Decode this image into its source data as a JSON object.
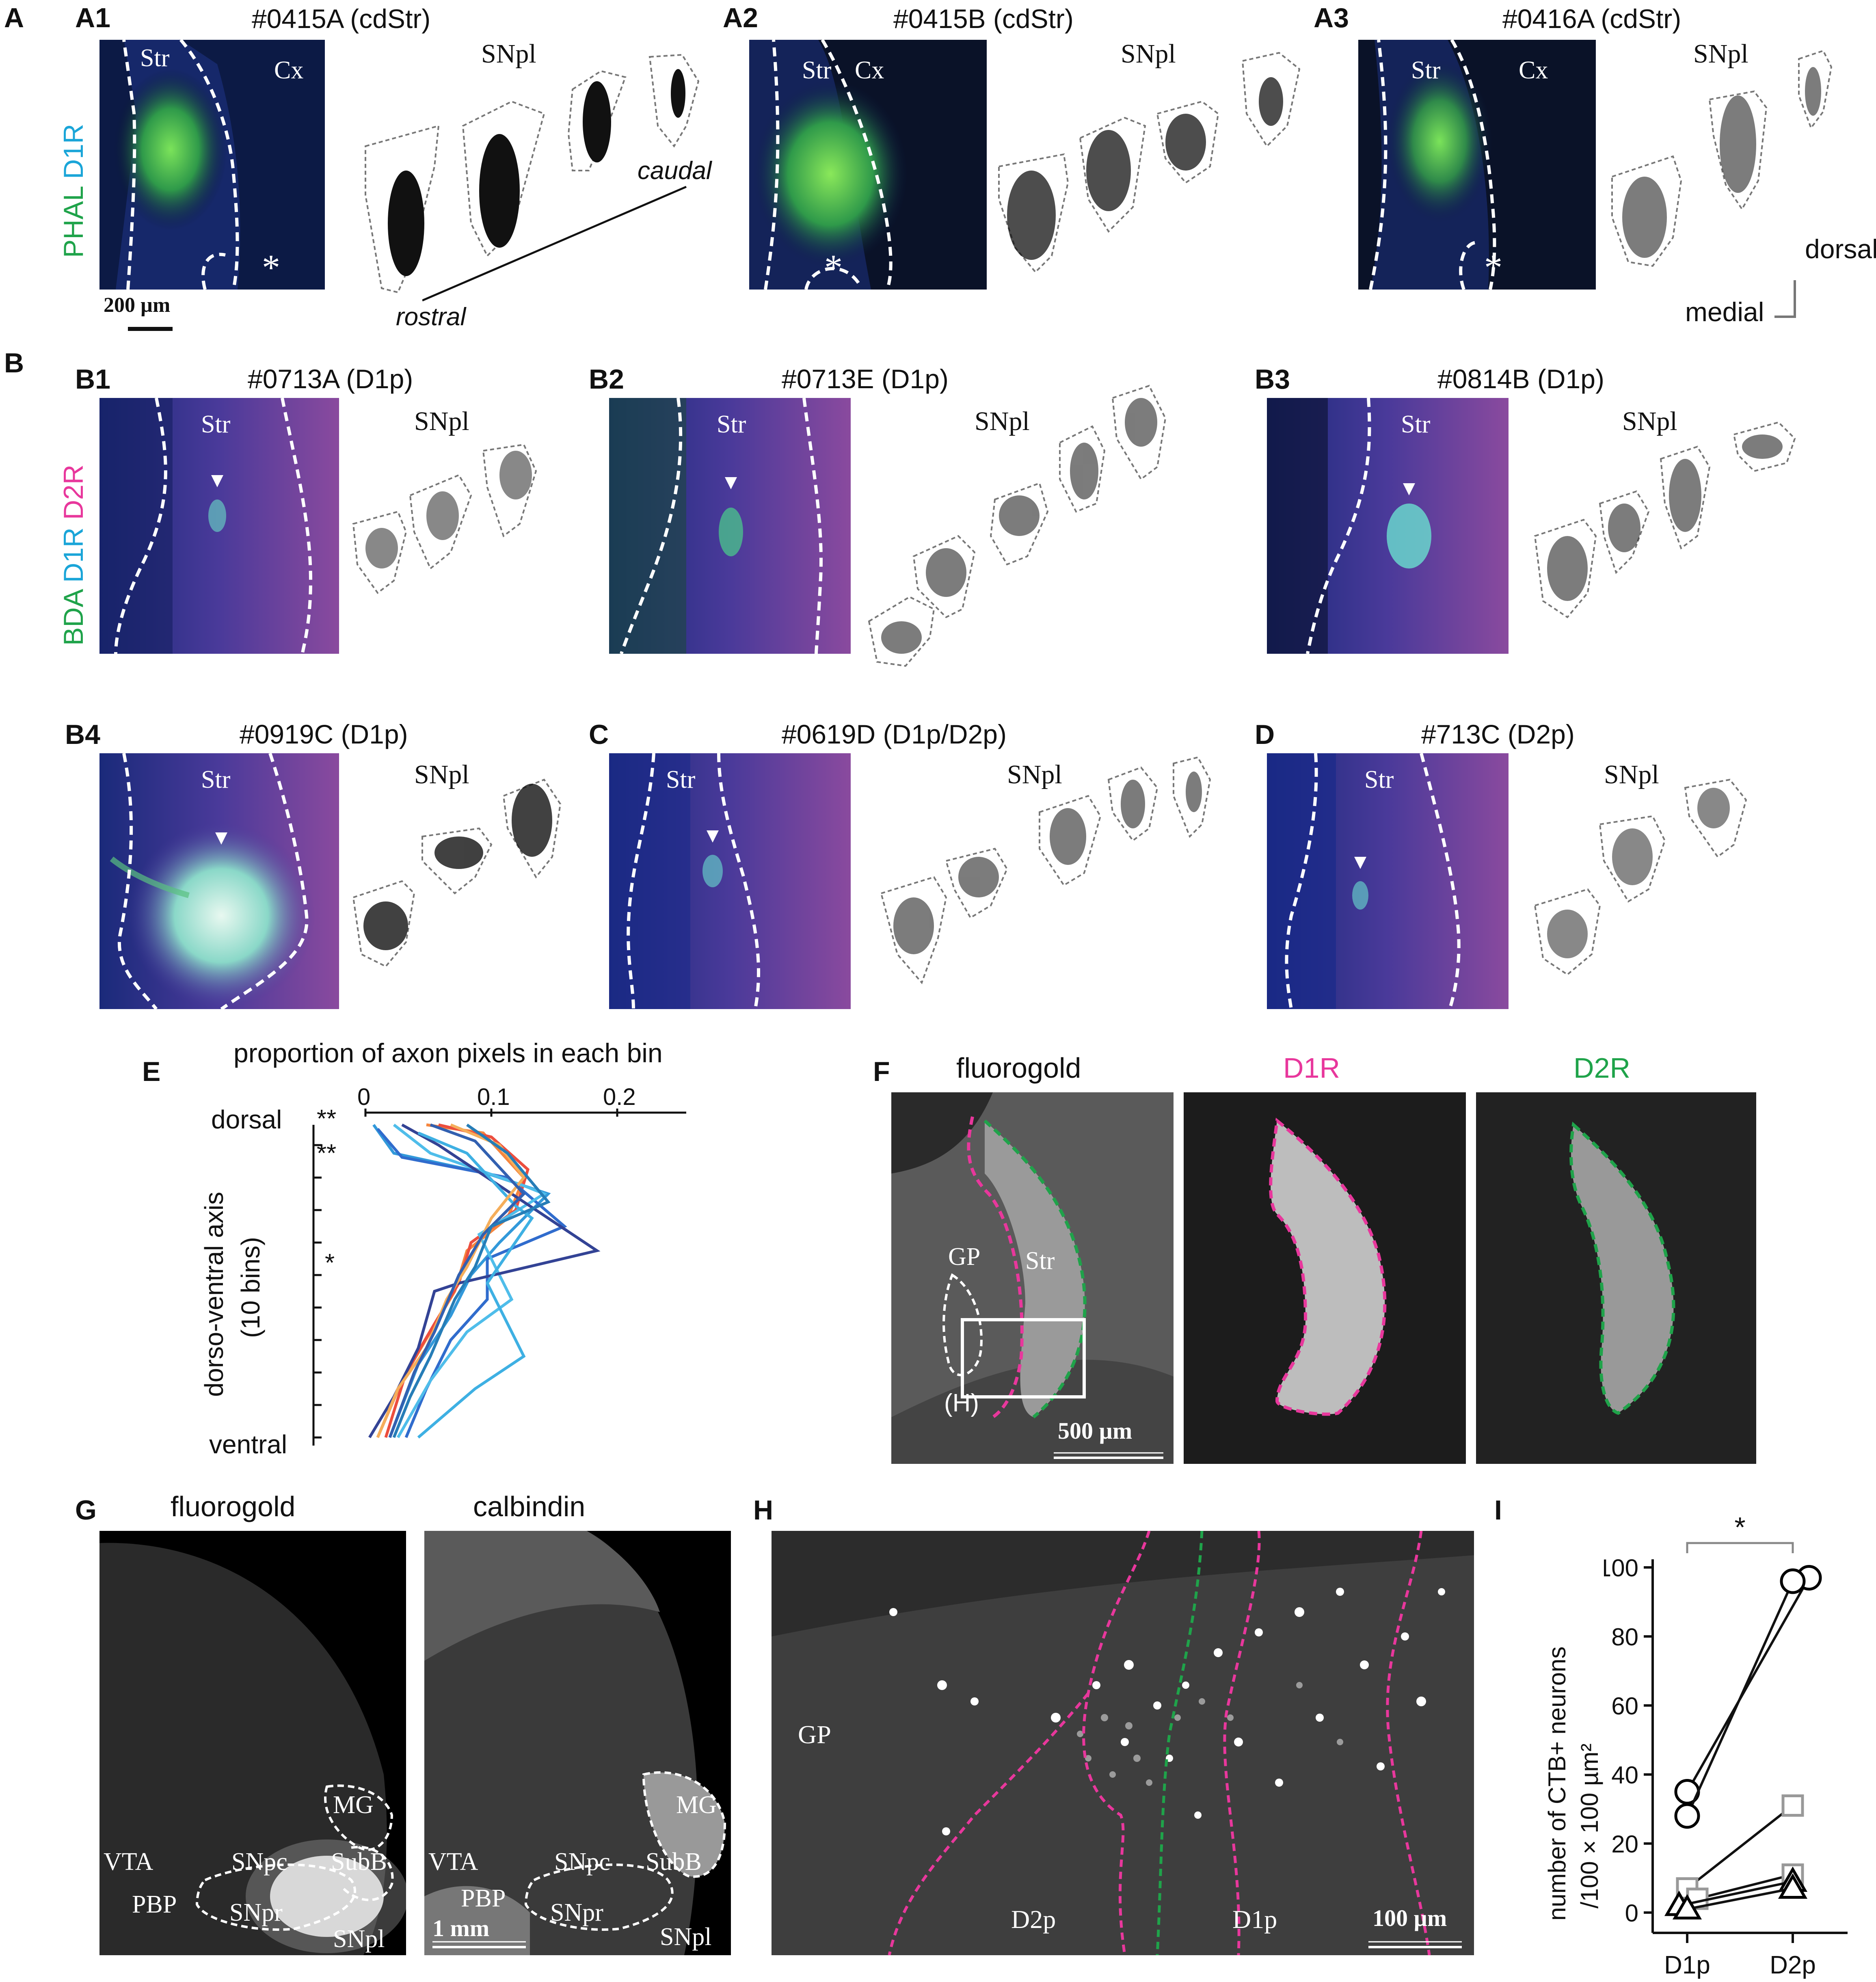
{
  "panel_letters": {
    "A": "A",
    "B": "B",
    "E": "E",
    "F": "F",
    "G": "G",
    "H": "H",
    "I": "I"
  },
  "panelA": [
    {
      "id": "A1",
      "title": "#0415A (cdStr)",
      "labels": {
        "str": "Str",
        "cx": "Cx",
        "snpl": "SNpl",
        "asterisk": "*"
      }
    },
    {
      "id": "A2",
      "title": "#0415B (cdStr)",
      "labels": {
        "str": "Str",
        "cx": "Cx",
        "snpl": "SNpl",
        "asterisk": "*"
      }
    },
    {
      "id": "A3",
      "title": "#0416A (cdStr)",
      "labels": {
        "str": "Str",
        "cx": "Cx",
        "snpl": "SNpl",
        "asterisk": "*"
      }
    }
  ],
  "panelA_extra": {
    "stain_phal": "PHAL",
    "stain_d1r": "D1R",
    "scalebar": "200 µm",
    "caudal": "caudal",
    "rostral": "rostral",
    "dorsal": "dorsal",
    "medial": "medial"
  },
  "panelB_stain": {
    "bda": "BDA",
    "d1r": "D1R",
    "d2r": "D2R"
  },
  "panelB": [
    {
      "id": "B1",
      "title": "#0713A (D1p)",
      "str": "Str",
      "snpl": "SNpl"
    },
    {
      "id": "B2",
      "title": "#0713E (D1p)",
      "str": "Str",
      "snpl": "SNpl"
    },
    {
      "id": "B3",
      "title": "#0814B (D1p)",
      "str": "Str",
      "snpl": "SNpl"
    },
    {
      "id": "B4",
      "title": "#0919C (D1p)",
      "str": "Str",
      "snpl": "SNpl"
    },
    {
      "id": "C",
      "title": "#0619D (D1p/D2p)",
      "str": "Str",
      "snpl": "SNpl"
    },
    {
      "id": "D",
      "title": "#713C (D2p)",
      "str": "Str",
      "snpl": "SNpl"
    }
  ],
  "panelE": {
    "xlabel": "proportion of axon pixels  in each bin",
    "ylabel_top": "dorso-ventral axis",
    "ylabel_bottom": "(10 bins)",
    "dorsal": "dorsal",
    "ventral": "ventral",
    "xticks": [
      "0",
      "0.1",
      "0.2"
    ],
    "sig": [
      "**",
      "**",
      "*"
    ]
  },
  "panelF": {
    "titles": [
      "fluorogold",
      "D1R",
      "D2R"
    ],
    "gp": "GP",
    "str": "Str",
    "h": "(H)",
    "scalebar": "500 µm",
    "colors": {
      "d1r": "#e8379c",
      "d2r": "#1fa34a"
    }
  },
  "panelG": {
    "titles": [
      "fluorogold",
      "calbindin"
    ],
    "regions": [
      "MG",
      "VTA",
      "SNpc",
      "SubB",
      "PBP",
      "SNpr",
      "SNpl"
    ],
    "scalebar": "1 mm"
  },
  "panelH": {
    "gp": "GP",
    "d2p": "D2p",
    "d1p": "D1p",
    "scalebar": "100 µm"
  },
  "chart_data": {
    "type": "line",
    "title": "",
    "ylabel": "number of CTB+ neurons /100 × 100 µm²",
    "ylabel_line1": "number of CTB+ neurons",
    "ylabel_line2": "/100 × 100 µm²",
    "categories": [
      "D1p",
      "D2p"
    ],
    "yticks": [
      "0",
      "20",
      "40",
      "60",
      "80",
      "100"
    ],
    "ylim": [
      0,
      100
    ],
    "significance": "*",
    "series": [
      {
        "marker": "circle",
        "color": "#000000",
        "values": [
          35,
          97
        ]
      },
      {
        "marker": "circle",
        "color": "#000000",
        "values": [
          28,
          96
        ]
      },
      {
        "marker": "square",
        "color": "#999999",
        "values": [
          7,
          31
        ]
      },
      {
        "marker": "square",
        "color": "#999999",
        "values": [
          4,
          11
        ]
      },
      {
        "marker": "triangle",
        "color": "#000000",
        "values": [
          2,
          9
        ]
      },
      {
        "marker": "triangle",
        "color": "#000000",
        "values": [
          1,
          7
        ]
      }
    ]
  }
}
